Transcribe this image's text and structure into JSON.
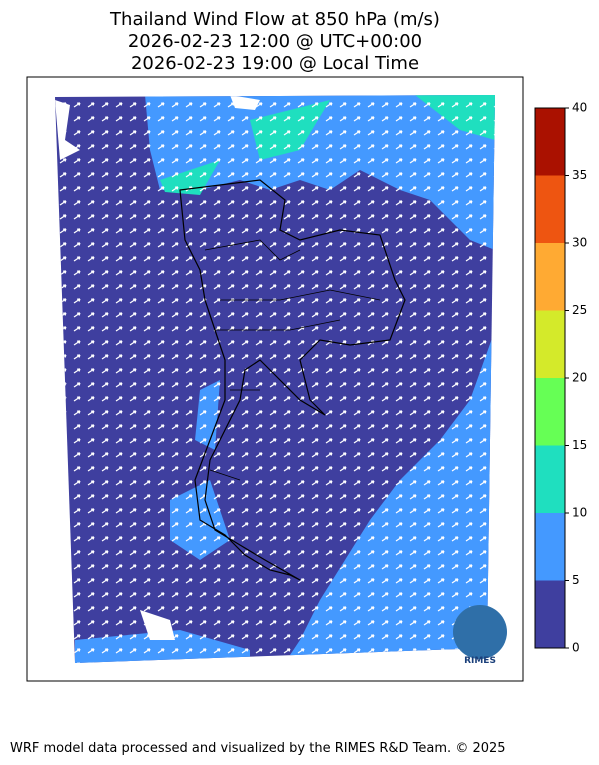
{
  "map": {
    "title": [
      "Thailand Wind Flow at 850 hPa (m/s)",
      "2026-02-23 12:00 @ UTC+00:00",
      "2026-02-23 19:00 @ Local Time"
    ],
    "colorbar": {
      "lim": [
        0,
        40
      ],
      "ticks": [
        0,
        5,
        10,
        15,
        20,
        25,
        30,
        35,
        40
      ],
      "colors": [
        "#3f3f9f",
        "#4499ff",
        "#1fdfbf",
        "#66ff55",
        "#d4ea2a",
        "#ffaa33",
        "#ee5511",
        "#aa1100"
      ]
    },
    "logo": "RIMES",
    "footer": "WRF model data processed and visualized by the RIMES R&D Team. © 2025"
  }
}
